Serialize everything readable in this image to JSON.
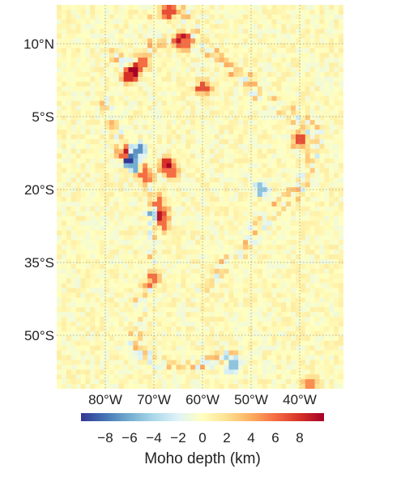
{
  "chart_data": {
    "type": "heatmap",
    "map_extent": {
      "lon_min": -90,
      "lon_max": -31,
      "lat_min": -61,
      "lat_max": 18
    },
    "grid": {
      "rows": 80,
      "cols": 60
    },
    "x_ticks": [
      {
        "value": -80,
        "label": "80°W"
      },
      {
        "value": -70,
        "label": "70°W"
      },
      {
        "value": -60,
        "label": "60°W"
      },
      {
        "value": -50,
        "label": "50°W"
      },
      {
        "value": -40,
        "label": "40°W"
      }
    ],
    "y_ticks": [
      {
        "value": 10,
        "label": "10°N"
      },
      {
        "value": -5,
        "label": "5°S"
      },
      {
        "value": -20,
        "label": "20°S"
      },
      {
        "value": -35,
        "label": "35°S"
      },
      {
        "value": -50,
        "label": "50°S"
      }
    ],
    "grid_lines": true,
    "colorbar": {
      "title": "Moho depth (km)",
      "range": [
        -10,
        10
      ],
      "ticks": [
        {
          "value": -8,
          "label": "−8"
        },
        {
          "value": -6,
          "label": "−6"
        },
        {
          "value": -4,
          "label": "−4"
        },
        {
          "value": -2,
          "label": "−2"
        },
        {
          "value": 0,
          "label": "0"
        },
        {
          "value": 2,
          "label": "2"
        },
        {
          "value": 4,
          "label": "4"
        },
        {
          "value": 6,
          "label": "6"
        },
        {
          "value": 8,
          "label": "8"
        }
      ],
      "colormap": [
        "#313695",
        "#4575b4",
        "#74add1",
        "#abd9e9",
        "#e0f3f8",
        "#ffffbf",
        "#fee090",
        "#fdae61",
        "#f46d43",
        "#d73027",
        "#a50026"
      ]
    },
    "anomalies": [
      {
        "lon": -74,
        "lat": 4.5,
        "value": 9
      },
      {
        "lon": -75,
        "lat": 3.5,
        "value": 8
      },
      {
        "lon": -72,
        "lat": 6,
        "value": 6
      },
      {
        "lon": -64.5,
        "lat": 11,
        "value": 7
      },
      {
        "lon": -63.5,
        "lat": 10,
        "value": 6
      },
      {
        "lon": -60,
        "lat": 1,
        "value": 7
      },
      {
        "lon": -67,
        "lat": 16.5,
        "value": 7
      },
      {
        "lon": -76,
        "lat": -13,
        "value": 9
      },
      {
        "lon": -75,
        "lat": -14,
        "value": -8
      },
      {
        "lon": -74,
        "lat": -15,
        "value": -6
      },
      {
        "lon": -73,
        "lat": -12,
        "value": -7
      },
      {
        "lon": -67.5,
        "lat": -15,
        "value": 8
      },
      {
        "lon": -66,
        "lat": -16.5,
        "value": 6
      },
      {
        "lon": -72,
        "lat": -17,
        "value": 6
      },
      {
        "lon": -70,
        "lat": -25,
        "value": -6
      },
      {
        "lon": -68.5,
        "lat": -25,
        "value": 7
      },
      {
        "lon": -69,
        "lat": -23,
        "value": 6
      },
      {
        "lon": -68,
        "lat": -27,
        "value": 6
      },
      {
        "lon": -70,
        "lat": -38,
        "value": 6
      },
      {
        "lon": -40,
        "lat": -10,
        "value": 7
      },
      {
        "lon": -48,
        "lat": -20,
        "value": -5
      },
      {
        "lon": -54,
        "lat": -56,
        "value": -5
      },
      {
        "lon": -37.5,
        "lat": -60,
        "value": 5
      }
    ]
  }
}
